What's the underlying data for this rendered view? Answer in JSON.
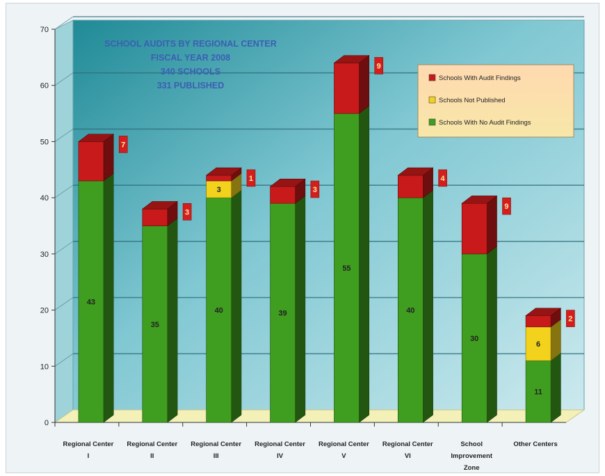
{
  "chart_data": {
    "type": "bar",
    "stacked": true,
    "title_lines": [
      "SCHOOL AUDITS BY REGIONAL CENTER",
      "FISCAL YEAR 2008",
      "340 SCHOOLS",
      "331 PUBLISHED"
    ],
    "xlabel": "",
    "ylabel": "",
    "ylim": [
      0,
      70
    ],
    "yticks": [
      0,
      10,
      20,
      30,
      40,
      50,
      60,
      70
    ],
    "grid": true,
    "legend_position": "top-right",
    "categories": [
      [
        "Regional Center",
        "I"
      ],
      [
        "Regional Center",
        "II"
      ],
      [
        "Regional Center",
        "III"
      ],
      [
        "Regional Center",
        "IV"
      ],
      [
        "Regional Center",
        "V"
      ],
      [
        "Regional Center",
        "VI"
      ],
      [
        "School",
        "Improvement",
        "Zone"
      ],
      [
        "Other Centers"
      ]
    ],
    "series": [
      {
        "name": "Schools With No Audit Findings",
        "color": "#3f9e1f",
        "values": [
          43,
          35,
          40,
          39,
          55,
          40,
          30,
          11
        ],
        "labels": [
          "43",
          "35",
          "40",
          "39",
          "55",
          "40",
          "30",
          "11"
        ]
      },
      {
        "name": "Schools Not Published",
        "color": "#f2d21c",
        "values": [
          0,
          0,
          3,
          0,
          0,
          0,
          0,
          6
        ],
        "labels": [
          "",
          "",
          "3",
          "",
          "",
          "",
          "",
          "6"
        ]
      },
      {
        "name": "Schools With Audit Findings",
        "color": "#c81a1a",
        "values": [
          7,
          3,
          1,
          3,
          9,
          4,
          9,
          2
        ],
        "labels": [
          "7",
          "3",
          "1",
          "3",
          "9",
          "4",
          "9",
          "2"
        ]
      }
    ],
    "legend_order": [
      2,
      1,
      0
    ]
  }
}
